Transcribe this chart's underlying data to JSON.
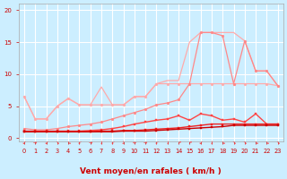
{
  "background_color": "#cceeff",
  "grid_color": "#ffffff",
  "x_label": "Vent moyen/en rafales ( km/h )",
  "x_ticks": [
    0,
    1,
    2,
    3,
    4,
    5,
    6,
    7,
    8,
    9,
    10,
    11,
    12,
    13,
    14,
    15,
    16,
    17,
    18,
    19,
    20,
    21,
    22,
    23
  ],
  "y_ticks": [
    0,
    5,
    10,
    15,
    20
  ],
  "ylim": [
    -0.5,
    21
  ],
  "xlim": [
    -0.5,
    23.5
  ],
  "series": [
    {
      "comment": "lightest pink - no marker, upper envelope, triangle peak at x=7-8 then rises to 16",
      "x": [
        0,
        1,
        2,
        3,
        4,
        5,
        6,
        7,
        8,
        9,
        10,
        11,
        12,
        13,
        14,
        15,
        16,
        17,
        18,
        19,
        20,
        21,
        22,
        23
      ],
      "y": [
        6.5,
        3.0,
        3.0,
        5.0,
        6.2,
        5.2,
        5.2,
        8.0,
        5.2,
        5.2,
        6.5,
        6.5,
        8.5,
        9.0,
        9.0,
        15.0,
        16.5,
        16.5,
        16.5,
        16.5,
        15.2,
        10.5,
        10.5,
        8.2
      ],
      "color": "#ffaaaa",
      "linewidth": 0.9,
      "marker": null,
      "markersize": 0
    },
    {
      "comment": "light pink with dot markers - mostly increasing to 16 then drop",
      "x": [
        0,
        1,
        2,
        3,
        4,
        5,
        6,
        7,
        8,
        9,
        10,
        11,
        12,
        13,
        14,
        15,
        16,
        17,
        18,
        19,
        20,
        21,
        22,
        23
      ],
      "y": [
        6.5,
        3.0,
        3.0,
        5.0,
        6.2,
        5.2,
        5.2,
        5.2,
        5.2,
        5.2,
        6.5,
        6.5,
        8.5,
        8.5,
        8.5,
        8.5,
        8.5,
        8.5,
        8.5,
        8.5,
        8.5,
        8.5,
        8.5,
        8.2
      ],
      "color": "#ffaaaa",
      "linewidth": 0.9,
      "marker": "o",
      "markersize": 2.0
    },
    {
      "comment": "medium pink with dot markers - increases to ~16 at x=16, drops to 10, then 8",
      "x": [
        0,
        1,
        2,
        3,
        4,
        5,
        6,
        7,
        8,
        9,
        10,
        11,
        12,
        13,
        14,
        15,
        16,
        17,
        18,
        19,
        20,
        21,
        22,
        23
      ],
      "y": [
        1.5,
        1.3,
        1.3,
        1.5,
        1.8,
        2.0,
        2.2,
        2.5,
        3.0,
        3.5,
        4.0,
        4.5,
        5.2,
        5.5,
        6.0,
        8.5,
        16.5,
        16.5,
        16.0,
        8.5,
        15.2,
        10.5,
        10.5,
        8.2
      ],
      "color": "#ff8888",
      "linewidth": 0.9,
      "marker": "o",
      "markersize": 2.0
    },
    {
      "comment": "darker red with square markers - rises to 3.8 at x=15-16 then stays ~2.2",
      "x": [
        0,
        1,
        2,
        3,
        4,
        5,
        6,
        7,
        8,
        9,
        10,
        11,
        12,
        13,
        14,
        15,
        16,
        17,
        18,
        19,
        20,
        21,
        22,
        23
      ],
      "y": [
        1.1,
        1.1,
        1.1,
        1.1,
        1.1,
        1.1,
        1.2,
        1.3,
        1.5,
        1.8,
        2.2,
        2.5,
        2.8,
        3.0,
        3.5,
        2.8,
        3.8,
        3.5,
        2.8,
        3.0,
        2.5,
        3.8,
        2.2,
        2.2
      ],
      "color": "#ff4444",
      "linewidth": 1.0,
      "marker": "s",
      "markersize": 2.0
    },
    {
      "comment": "dark red with square markers - very flat, rises slightly from 1.0 to 2.2",
      "x": [
        0,
        1,
        2,
        3,
        4,
        5,
        6,
        7,
        8,
        9,
        10,
        11,
        12,
        13,
        14,
        15,
        16,
        17,
        18,
        19,
        20,
        21,
        22,
        23
      ],
      "y": [
        1.0,
        1.0,
        1.0,
        1.0,
        1.0,
        1.0,
        1.0,
        1.1,
        1.1,
        1.2,
        1.2,
        1.3,
        1.4,
        1.5,
        1.6,
        1.8,
        2.0,
        2.2,
        2.2,
        2.2,
        2.2,
        2.2,
        2.2,
        2.2
      ],
      "color": "#ee2222",
      "linewidth": 1.0,
      "marker": "s",
      "markersize": 2.0
    },
    {
      "comment": "darkest red line, near flat ~1.0-2.0",
      "x": [
        0,
        1,
        2,
        3,
        4,
        5,
        6,
        7,
        8,
        9,
        10,
        11,
        12,
        13,
        14,
        15,
        16,
        17,
        18,
        19,
        20,
        21,
        22,
        23
      ],
      "y": [
        1.0,
        1.0,
        1.0,
        1.0,
        1.0,
        1.0,
        1.0,
        1.0,
        1.0,
        1.1,
        1.1,
        1.1,
        1.2,
        1.3,
        1.4,
        1.5,
        1.6,
        1.7,
        1.8,
        2.0,
        2.0,
        2.0,
        2.0,
        2.0
      ],
      "color": "#cc0000",
      "linewidth": 1.0,
      "marker": "s",
      "markersize": 2.0
    }
  ],
  "arrow_chars": [
    "↙",
    "→",
    "↙",
    "↘",
    "↘",
    "↙",
    "→",
    "↓",
    "↙",
    "↓",
    "←",
    "→",
    "↙",
    "↓",
    "↗",
    "↗",
    "↙",
    "↓",
    "↘",
    "↘",
    "↘",
    "↘",
    "↘",
    "↘"
  ],
  "arrow_color": "#ff4444",
  "axis_label_fontsize": 6.5,
  "tick_fontsize": 5.0
}
